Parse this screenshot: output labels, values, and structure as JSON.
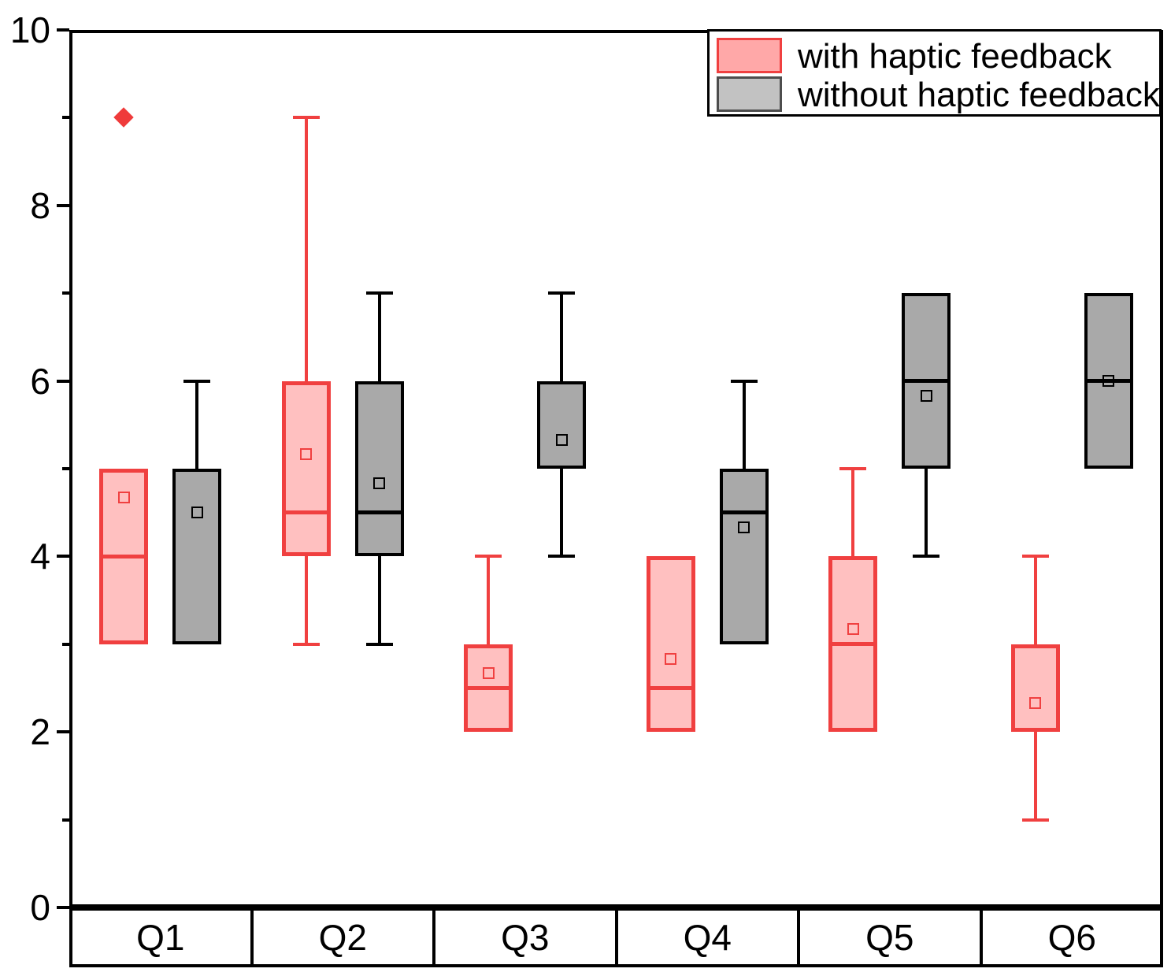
{
  "figure": {
    "background": "#FFFFFF"
  },
  "chart_data": {
    "type": "grouped_box_plot",
    "title": "",
    "xlabel": "",
    "ylabel": "",
    "categories": [
      "Q1",
      "Q2",
      "Q3",
      "Q4",
      "Q5",
      "Q6"
    ],
    "y_axis": {
      "min": 0,
      "max": 10,
      "major_ticks": [
        0,
        2,
        4,
        6,
        8,
        10
      ],
      "major_tick_labels": [
        "0",
        "2",
        "4",
        "6",
        "8",
        "10"
      ],
      "minor_ticks": [
        1,
        3,
        5,
        7,
        9
      ]
    },
    "grid": "off",
    "legend": {
      "position": "top-right",
      "items": [
        {
          "label": "with haptic feedback",
          "fill": "#FFA8A8",
          "border": "#F04040"
        },
        {
          "label": "without haptic feedback",
          "fill": "#C2C2C2",
          "border": "#4D4D4D"
        }
      ]
    },
    "series": [
      {
        "name": "with haptic feedback",
        "fill": "#FFC0C0",
        "border": "#F04040",
        "boxes": [
          {
            "category": "Q1",
            "q1": 3,
            "median": 4,
            "q3": 5,
            "whisker_low": null,
            "whisker_high": null,
            "mean": 4.67,
            "outliers": [
              9
            ]
          },
          {
            "category": "Q2",
            "q1": 4,
            "median": 4.5,
            "q3": 6,
            "whisker_low": 3,
            "whisker_high": 9,
            "mean": 5.17,
            "outliers": []
          },
          {
            "category": "Q3",
            "q1": 2,
            "median": 2.5,
            "q3": 3,
            "whisker_low": null,
            "whisker_high": 4,
            "mean": 2.67,
            "outliers": []
          },
          {
            "category": "Q4",
            "q1": 2,
            "median": 2.5,
            "q3": 4,
            "whisker_low": null,
            "whisker_high": null,
            "mean": 2.83,
            "outliers": []
          },
          {
            "category": "Q5",
            "q1": 2,
            "median": 3,
            "q3": 4,
            "whisker_low": null,
            "whisker_high": 5,
            "mean": 3.17,
            "outliers": []
          },
          {
            "category": "Q6",
            "q1": 2,
            "median": null,
            "q3": 3,
            "whisker_low": 1,
            "whisker_high": 4,
            "mean": 2.33,
            "outliers": []
          }
        ]
      },
      {
        "name": "without haptic feedback",
        "fill": "#A9A9A9",
        "border": "#000000",
        "boxes": [
          {
            "category": "Q1",
            "q1": 3,
            "median": null,
            "q3": 5,
            "whisker_low": null,
            "whisker_high": 6,
            "mean": 4.5,
            "outliers": []
          },
          {
            "category": "Q2",
            "q1": 4,
            "median": 4.5,
            "q3": 6,
            "whisker_low": 3,
            "whisker_high": 7,
            "mean": 4.83,
            "outliers": []
          },
          {
            "category": "Q3",
            "q1": 5,
            "median": null,
            "q3": 6,
            "whisker_low": 4,
            "whisker_high": 7,
            "mean": 5.33,
            "outliers": []
          },
          {
            "category": "Q4",
            "q1": 3,
            "median": 4.5,
            "q3": 5,
            "whisker_low": null,
            "whisker_high": 6,
            "mean": 4.33,
            "outliers": []
          },
          {
            "category": "Q5",
            "q1": 5,
            "median": 6,
            "q3": 7,
            "whisker_low": 4,
            "whisker_high": null,
            "mean": 5.83,
            "outliers": []
          },
          {
            "category": "Q6",
            "q1": 5,
            "median": 6,
            "q3": 7,
            "whisker_low": null,
            "whisker_high": null,
            "mean": 6.0,
            "outliers": []
          }
        ]
      }
    ],
    "marker_notes": {
      "mean_marker": "small open square",
      "outlier_marker": "solid diamond"
    },
    "axis_color": "#000000"
  }
}
